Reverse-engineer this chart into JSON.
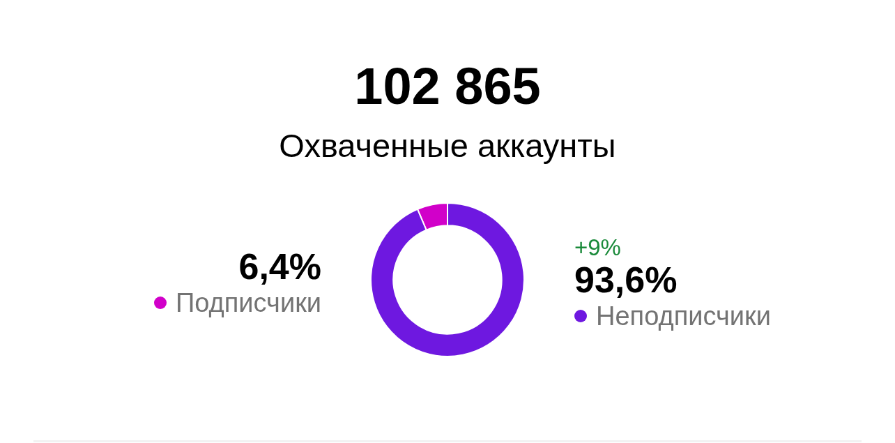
{
  "chart_data": {
    "type": "donut",
    "title": "102 865",
    "subtitle": "Охваченные аккаунты",
    "categories": [
      "Подписчики",
      "Неподписчики"
    ],
    "values": [
      6.4,
      93.6
    ],
    "colors": [
      "#d100c9",
      "#6e18e0"
    ],
    "value_labels": [
      "6,4%",
      "93,6%"
    ],
    "annotations": [
      "+9%"
    ],
    "legend": "center"
  }
}
